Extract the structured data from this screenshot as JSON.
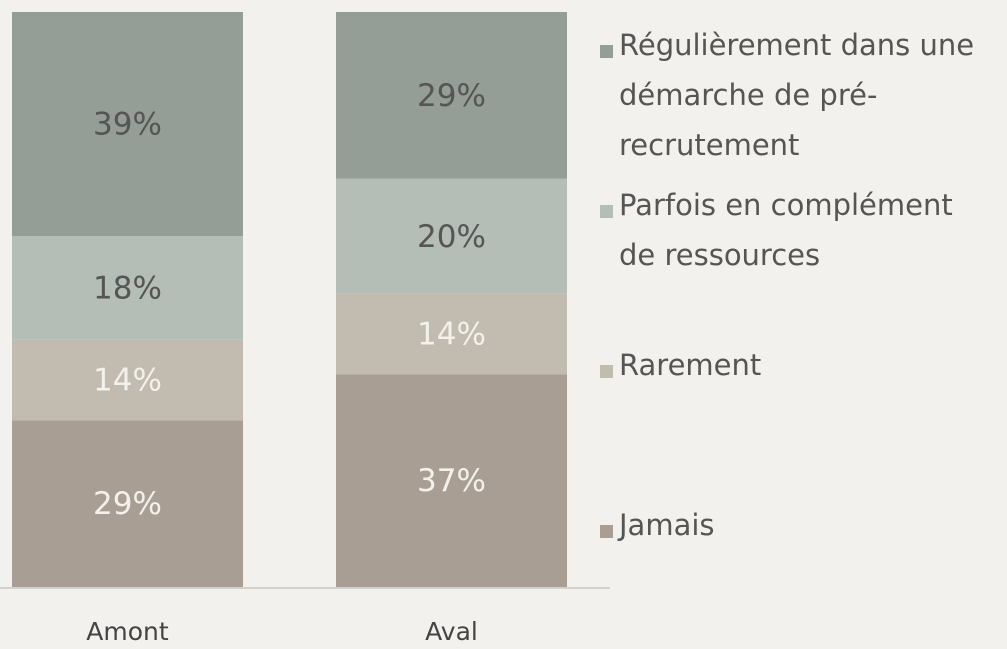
{
  "chart_data": {
    "type": "stacked_bar",
    "categories": [
      "Amont",
      "Aval"
    ],
    "series": [
      {
        "name": "Jamais",
        "color": "#a99e93",
        "label_color": "#f3f1ec",
        "values": [
          29,
          37
        ],
        "value_labels": [
          "29%",
          "37%"
        ]
      },
      {
        "name": "Rarement",
        "color": "#c2bbaf",
        "label_color": "#f3f1ec",
        "values": [
          14,
          14
        ],
        "value_labels": [
          "14%",
          "14%"
        ]
      },
      {
        "name": "Parfois en complément de ressources",
        "color": "#b4bdb6",
        "label_color": "#555555",
        "values": [
          18,
          20
        ],
        "value_labels": [
          "18%",
          "20%"
        ]
      },
      {
        "name": "Régulièrement dans une démarche de pré-recrutement",
        "color": "#959d97",
        "label_color": "#555555",
        "values": [
          39,
          29
        ],
        "value_labels": [
          "39%",
          "29%"
        ]
      }
    ],
    "ylim": [
      0,
      100
    ]
  }
}
